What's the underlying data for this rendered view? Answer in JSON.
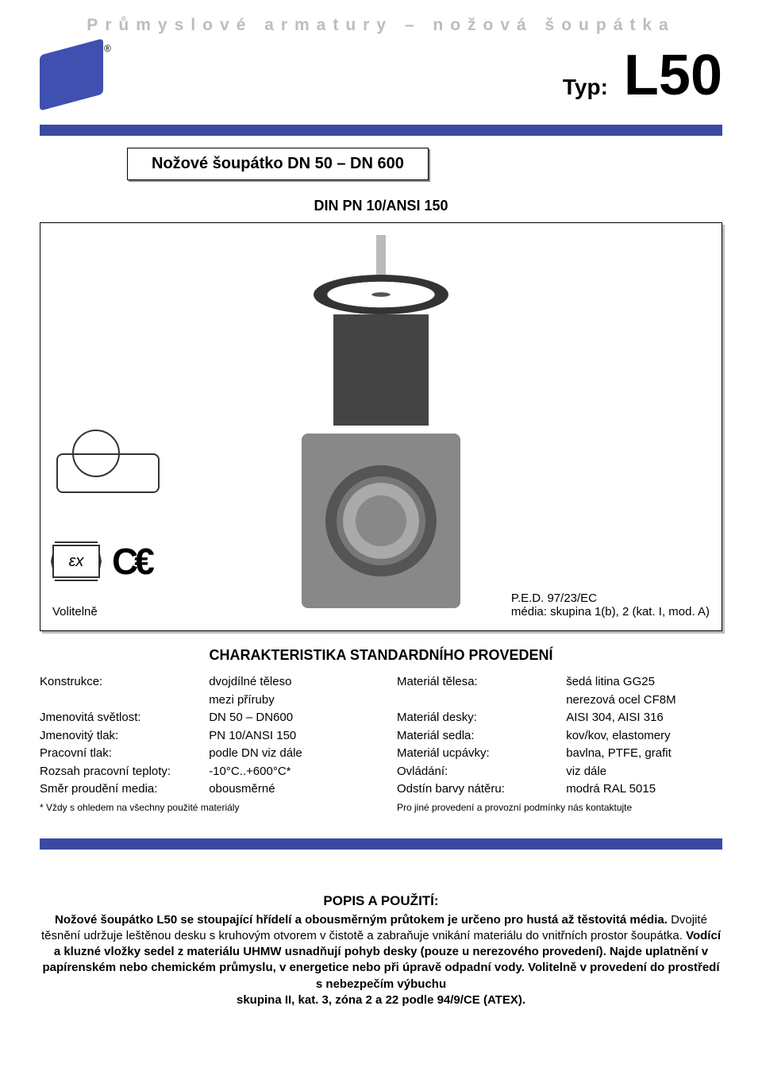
{
  "colors": {
    "accent_bar": "#3a4aa2",
    "header_gray": "#bdbdbd",
    "page_bg": "#ffffff",
    "text": "#000000"
  },
  "header": {
    "category": "Průmyslové armatury – nožová šoupátka",
    "type_label": "Typ:",
    "type_code": "L50",
    "product_title": "Nožové šoupátko DN 50 – DN 600",
    "subtitle": "DIN PN 10/ANSI 150"
  },
  "figure": {
    "optional_label": "Volitelně",
    "ped_line1": "P.E.D. 97/23/EC",
    "ped_line2": "média: skupina 1(b), 2 (kat. I, mod. A)",
    "ex_text": "εx",
    "ce_text": "C€"
  },
  "section1_title": "CHARAKTERISTIKA STANDARDNÍHO PROVEDENÍ",
  "specs_left": [
    {
      "label": "Konstrukce:",
      "value": "dvojdílné těleso"
    },
    {
      "label": "",
      "value": "mezi příruby"
    },
    {
      "label": "Jmenovitá světlost:",
      "value": "DN 50 – DN600"
    },
    {
      "label": "Jmenovitý tlak:",
      "value": "PN 10/ANSI 150"
    },
    {
      "label": "Pracovní tlak:",
      "value": "podle DN viz dále"
    },
    {
      "label": "Rozsah pracovní teploty:",
      "value": "-10°C..+600°C*"
    },
    {
      "label": "Směr proudění media:",
      "value": "obousměrné"
    }
  ],
  "specs_left_note": "* Vždy s ohledem na všechny použité materiály",
  "specs_right": [
    {
      "label": "Materiál  tělesa:",
      "value": "šedá litina GG25"
    },
    {
      "label": "",
      "value": "nerezová ocel CF8M"
    },
    {
      "label": "Materiál desky:",
      "value": "AISI 304, AISI 316"
    },
    {
      "label": "Materiál sedla:",
      "value": "kov/kov, elastomery"
    },
    {
      "label": "Materiál ucpávky:",
      "value": "bavlna, PTFE, grafit"
    },
    {
      "label": "Ovládání:",
      "value": "viz dále"
    },
    {
      "label": "Odstín barvy nátěru:",
      "value": "modrá RAL 5015"
    }
  ],
  "specs_right_note": "Pro jiné provedení a provozní podmínky nás kontaktujte",
  "description": {
    "heading": "POPIS A POUŽITÍ:",
    "body_html": "<b>Nožové šoupátko L50 se stoupající hřídelí a obousměrným průtokem je určeno pro hustá až těstovitá média.</b> Dvojité těsnění udržuje leštěnou desku s kruhovým otvorem v čistotě a zabraňuje vnikání materiálu do vnitřních prostor šoupátka. <b>Vodící a kluzné vložky sedel z materiálu UHMW usnadňují pohyb desky (pouze u nerezového provedení). Najde uplatnění v papírenském nebo chemickém průmyslu, v energetice nebo při úpravě odpadní vody. Volitelně v provedení do prostředí s nebezpečím výbuchu<br>skupina II, kat. 3, zóna 2 a 22 podle 94/9/CE (ATEX).</b>"
  }
}
